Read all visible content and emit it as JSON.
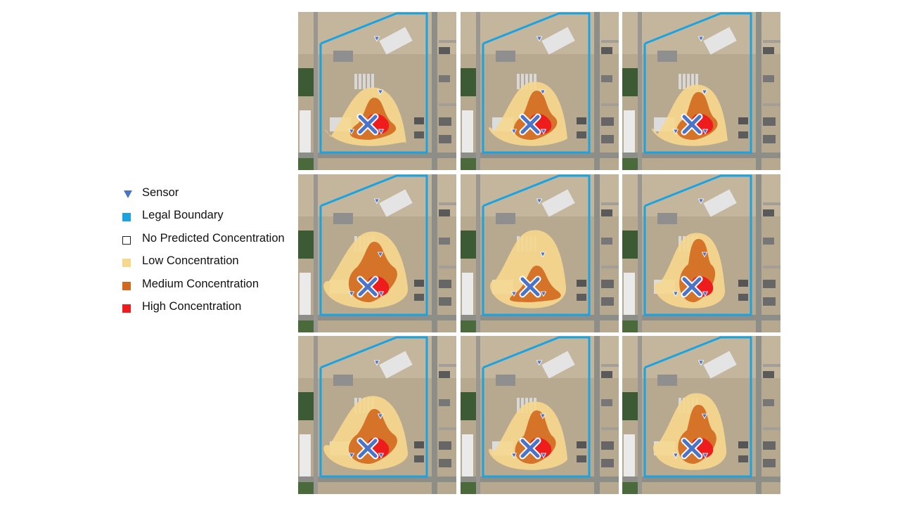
{
  "legend": {
    "items": [
      {
        "label": "Sensor",
        "symbol": "sensor-triangle",
        "color": "#4a74c9"
      },
      {
        "label": "Legal Boundary",
        "symbol": "square",
        "color": "#1aa3e0"
      },
      {
        "label": "No Predicted Concentration",
        "symbol": "square-outline",
        "color": "#ffffff"
      },
      {
        "label": "Low Concentration",
        "symbol": "square",
        "color": "#f5d78e"
      },
      {
        "label": "Medium Concentration",
        "symbol": "square",
        "color": "#d2691e"
      },
      {
        "label": "High Concentration",
        "symbol": "square",
        "color": "#ee1c1c"
      }
    ]
  },
  "map": {
    "rows": 3,
    "columns": 3,
    "panel_count": 9,
    "source_marker": "x-mark-icon",
    "boundary_color": "#1aa3e0",
    "colors": {
      "low": "#f5d78e",
      "medium": "#d2691e",
      "high": "#ee1c1c",
      "sensor": "#4a74c9",
      "source_fill": "#4a74c9",
      "source_outline": "#ffffff"
    }
  }
}
